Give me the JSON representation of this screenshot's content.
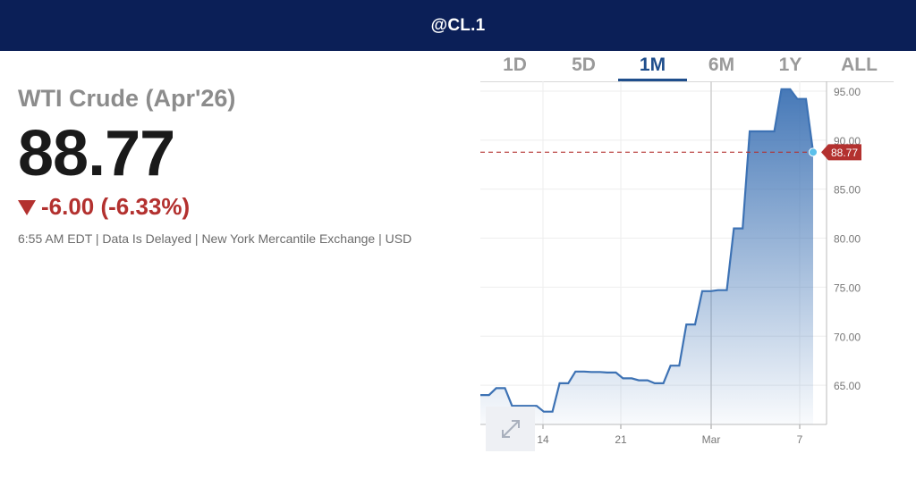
{
  "header": {
    "symbol": "@CL.1"
  },
  "quote": {
    "name": "WTI Crude (Apr'26)",
    "price": "88.77",
    "change": "-6.00 (-6.33%)",
    "meta": "6:55 AM EDT | Data Is Delayed | New York Mercantile Exchange | USD"
  },
  "tabs": [
    {
      "label": "1D",
      "active": false
    },
    {
      "label": "5D",
      "active": false
    },
    {
      "label": "1M",
      "active": true
    },
    {
      "label": "6M",
      "active": false
    },
    {
      "label": "1Y",
      "active": false
    },
    {
      "label": "ALL",
      "active": false
    }
  ],
  "colors": {
    "header_bg": "#0b1f57",
    "line": "#3d72b4",
    "negative": "#b3312f",
    "active_tab": "#1f4e8c",
    "last_point": "#5bc0eb"
  },
  "icons": {
    "expand": "expand-arrows-icon",
    "down": "down-triangle-icon"
  },
  "chart_data": {
    "type": "area",
    "x": [
      "Feb 9",
      "Feb 10",
      "Feb 11",
      "Feb 12",
      "Feb 13",
      "Feb 16",
      "Feb 17",
      "Feb 18",
      "Feb 19",
      "Feb 20",
      "Feb 23",
      "Feb 24",
      "Feb 25",
      "Feb 26",
      "Feb 27",
      "Mar 2",
      "Mar 3",
      "Mar 4",
      "Mar 5",
      "Mar 6",
      "Mar 7",
      "Mar 9"
    ],
    "values": [
      64.0,
      64.7,
      62.9,
      62.9,
      62.3,
      65.2,
      66.4,
      66.35,
      66.3,
      65.7,
      65.5,
      65.2,
      67.0,
      71.2,
      74.6,
      74.7,
      81.0,
      90.9,
      90.9,
      95.2,
      94.2,
      88.77
    ],
    "x_ticks": [
      "14",
      "21",
      "Mar",
      "7"
    ],
    "y_ticks": [
      "65.00",
      "70.00",
      "75.00",
      "80.00",
      "85.00",
      "90.00",
      "95.00"
    ],
    "ylim": [
      61,
      96
    ],
    "last_value_label": "88.77",
    "grid": true
  }
}
